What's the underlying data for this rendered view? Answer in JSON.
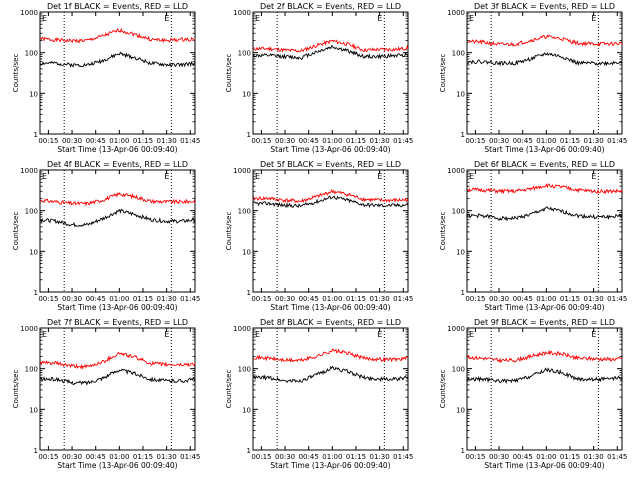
{
  "figure": {
    "common": {
      "ylabel": "Counts/sec",
      "xlabel": "Start Time (13-Apr-06 00:09:40)",
      "x_tick_labels": [
        "00:15",
        "00:30",
        "00:45",
        "01:00",
        "01:15",
        "01:30",
        "01:45"
      ],
      "y_tick_labels": [
        "1",
        "10",
        "100",
        "1000"
      ],
      "corner_markers": [
        "E",
        "E"
      ],
      "colors": {
        "events": "#000000",
        "lld": "#ff0000",
        "axes": "#000000",
        "background": "#ffffff"
      }
    }
  },
  "chart_data": [
    {
      "type": "line",
      "title": "Det 1f BLACK = Events, RED = LLD",
      "xlabel": "Start Time (13-Apr-06 00:09:40)",
      "ylabel": "Counts/sec",
      "yscale": "log",
      "ylim": [
        1,
        1000
      ],
      "xlim": [
        "00:09:40",
        "01:48:00"
      ],
      "x_ticks": [
        "00:15",
        "00:30",
        "00:45",
        "01:00",
        "01:15",
        "01:30",
        "01:45"
      ],
      "y_ticks": [
        1,
        10,
        100,
        1000
      ],
      "vlines": [
        "00:25",
        "01:33"
      ],
      "grid": false,
      "x": [
        "00:10",
        "00:20",
        "00:30",
        "00:40",
        "00:50",
        "01:00",
        "01:10",
        "01:20",
        "01:30",
        "01:40",
        "01:48"
      ],
      "series": [
        {
          "name": "LLD",
          "color": "#ff0000",
          "values": [
            220,
            205,
            195,
            200,
            260,
            360,
            280,
            210,
            200,
            210,
            215
          ]
        },
        {
          "name": "Events",
          "color": "#000000",
          "values": [
            55,
            55,
            50,
            50,
            65,
            95,
            75,
            55,
            50,
            50,
            55
          ]
        }
      ]
    },
    {
      "type": "line",
      "title": "Det 2f BLACK = Events, RED = LLD",
      "xlabel": "Start Time (13-Apr-06 00:09:40)",
      "ylabel": "Counts/sec",
      "yscale": "log",
      "ylim": [
        1,
        1000
      ],
      "xlim": [
        "00:09:40",
        "01:48:00"
      ],
      "x_ticks": [
        "00:15",
        "00:30",
        "00:45",
        "01:00",
        "01:15",
        "01:30",
        "01:45"
      ],
      "y_ticks": [
        1,
        10,
        100,
        1000
      ],
      "vlines": [
        "00:25",
        "01:33"
      ],
      "grid": false,
      "x": [
        "00:10",
        "00:20",
        "00:30",
        "00:40",
        "00:50",
        "01:00",
        "01:10",
        "01:20",
        "01:30",
        "01:40",
        "01:48"
      ],
      "series": [
        {
          "name": "LLD",
          "color": "#ff0000",
          "values": [
            125,
            125,
            115,
            110,
            150,
            195,
            160,
            115,
            120,
            120,
            130
          ]
        },
        {
          "name": "Events",
          "color": "#000000",
          "values": [
            85,
            85,
            80,
            75,
            105,
            140,
            110,
            80,
            80,
            85,
            90
          ]
        }
      ]
    },
    {
      "type": "line",
      "title": "Det 3f BLACK = Events, RED = LLD",
      "xlabel": "Start Time (13-Apr-06 00:09:40)",
      "ylabel": "Counts/sec",
      "yscale": "log",
      "ylim": [
        1,
        1000
      ],
      "xlim": [
        "00:09:40",
        "01:48:00"
      ],
      "x_ticks": [
        "00:15",
        "00:30",
        "00:45",
        "01:00",
        "01:15",
        "01:30",
        "01:45"
      ],
      "y_ticks": [
        1,
        10,
        100,
        1000
      ],
      "vlines": [
        "00:25",
        "01:33"
      ],
      "grid": false,
      "x": [
        "00:10",
        "00:20",
        "00:30",
        "00:40",
        "00:50",
        "01:00",
        "01:10",
        "01:20",
        "01:30",
        "01:40",
        "01:48"
      ],
      "series": [
        {
          "name": "LLD",
          "color": "#ff0000",
          "values": [
            190,
            180,
            160,
            160,
            200,
            250,
            220,
            170,
            165,
            165,
            170
          ]
        },
        {
          "name": "Events",
          "color": "#000000",
          "values": [
            60,
            60,
            55,
            55,
            70,
            95,
            80,
            55,
            55,
            55,
            60
          ]
        }
      ]
    },
    {
      "type": "line",
      "title": "Det 4f BLACK = Events, RED = LLD",
      "xlabel": "Start Time (13-Apr-06 00:09:40)",
      "ylabel": "Counts/sec",
      "yscale": "log",
      "ylim": [
        1,
        1000
      ],
      "xlim": [
        "00:09:40",
        "01:48:00"
      ],
      "x_ticks": [
        "00:15",
        "00:30",
        "00:45",
        "01:00",
        "01:15",
        "01:30",
        "01:45"
      ],
      "y_ticks": [
        1,
        10,
        100,
        1000
      ],
      "vlines": [
        "00:25",
        "01:33"
      ],
      "grid": false,
      "x": [
        "00:10",
        "00:20",
        "00:30",
        "00:40",
        "00:50",
        "01:00",
        "01:10",
        "01:20",
        "01:30",
        "01:40",
        "01:48"
      ],
      "series": [
        {
          "name": "LLD",
          "color": "#ff0000",
          "values": [
            180,
            165,
            150,
            150,
            185,
            260,
            220,
            170,
            165,
            165,
            170
          ]
        },
        {
          "name": "Events",
          "color": "#000000",
          "values": [
            60,
            55,
            45,
            45,
            65,
            100,
            80,
            60,
            55,
            55,
            60
          ]
        }
      ]
    },
    {
      "type": "line",
      "title": "Det 5f BLACK = Events, RED = LLD",
      "xlabel": "Start Time (13-Apr-06 00:09:40)",
      "ylabel": "Counts/sec",
      "yscale": "log",
      "ylim": [
        1,
        1000
      ],
      "xlim": [
        "00:09:40",
        "01:48:00"
      ],
      "x_ticks": [
        "00:15",
        "00:30",
        "00:45",
        "01:00",
        "01:15",
        "01:30",
        "01:45"
      ],
      "y_ticks": [
        1,
        10,
        100,
        1000
      ],
      "vlines": [
        "00:25",
        "01:33"
      ],
      "grid": false,
      "x": [
        "00:10",
        "00:20",
        "00:30",
        "00:40",
        "00:50",
        "01:00",
        "01:10",
        "01:20",
        "01:30",
        "01:40",
        "01:48"
      ],
      "series": [
        {
          "name": "LLD",
          "color": "#ff0000",
          "values": [
            200,
            200,
            180,
            170,
            220,
            300,
            250,
            190,
            180,
            180,
            185
          ]
        },
        {
          "name": "Events",
          "color": "#000000",
          "values": [
            150,
            150,
            135,
            130,
            165,
            220,
            180,
            140,
            135,
            135,
            140
          ]
        }
      ]
    },
    {
      "type": "line",
      "title": "Det 6f BLACK = Events, RED = LLD",
      "xlabel": "Start Time (13-Apr-06 00:09:40)",
      "ylabel": "Counts/sec",
      "yscale": "log",
      "ylim": [
        1,
        1000
      ],
      "xlim": [
        "00:09:40",
        "01:48:00"
      ],
      "x_ticks": [
        "00:15",
        "00:30",
        "00:45",
        "01:00",
        "01:15",
        "01:30",
        "01:45"
      ],
      "y_ticks": [
        1,
        10,
        100,
        1000
      ],
      "vlines": [
        "00:25",
        "01:33"
      ],
      "grid": false,
      "x": [
        "00:10",
        "00:20",
        "00:30",
        "00:40",
        "00:50",
        "01:00",
        "01:10",
        "01:20",
        "01:30",
        "01:40",
        "01:48"
      ],
      "series": [
        {
          "name": "LLD",
          "color": "#ff0000",
          "values": [
            330,
            320,
            300,
            300,
            340,
            420,
            380,
            320,
            300,
            300,
            300
          ]
        },
        {
          "name": "Events",
          "color": "#000000",
          "values": [
            75,
            75,
            65,
            65,
            80,
            115,
            95,
            75,
            70,
            70,
            75
          ]
        }
      ]
    },
    {
      "type": "line",
      "title": "Det 7f BLACK = Events, RED = LLD",
      "xlabel": "Start Time (13-Apr-06 00:09:40)",
      "ylabel": "Counts/sec",
      "yscale": "log",
      "ylim": [
        1,
        1000
      ],
      "xlim": [
        "00:09:40",
        "01:48:00"
      ],
      "x_ticks": [
        "00:15",
        "00:30",
        "00:45",
        "01:00",
        "01:15",
        "01:30",
        "01:45"
      ],
      "y_ticks": [
        1,
        10,
        100,
        1000
      ],
      "vlines": [
        "00:25",
        "01:33"
      ],
      "grid": false,
      "x": [
        "00:10",
        "00:20",
        "00:30",
        "00:40",
        "00:50",
        "01:00",
        "01:10",
        "01:20",
        "01:30",
        "01:40",
        "01:48"
      ],
      "series": [
        {
          "name": "LLD",
          "color": "#ff0000",
          "values": [
            140,
            135,
            115,
            110,
            150,
            240,
            190,
            135,
            125,
            125,
            130
          ]
        },
        {
          "name": "Events",
          "color": "#000000",
          "values": [
            55,
            55,
            45,
            45,
            60,
            95,
            75,
            55,
            50,
            50,
            55
          ]
        }
      ]
    },
    {
      "type": "line",
      "title": "Det 8f BLACK = Events, RED = LLD",
      "xlabel": "Start Time (13-Apr-06 00:09:40)",
      "ylabel": "Counts/sec",
      "yscale": "log",
      "ylim": [
        1,
        1000
      ],
      "xlim": [
        "00:09:40",
        "01:48:00"
      ],
      "x_ticks": [
        "00:15",
        "00:30",
        "00:45",
        "01:00",
        "01:15",
        "01:30",
        "01:45"
      ],
      "y_ticks": [
        1,
        10,
        100,
        1000
      ],
      "vlines": [
        "00:25",
        "01:33"
      ],
      "grid": false,
      "x": [
        "00:10",
        "00:20",
        "00:30",
        "00:40",
        "00:50",
        "01:00",
        "01:10",
        "01:20",
        "01:30",
        "01:40",
        "01:48"
      ],
      "series": [
        {
          "name": "LLD",
          "color": "#ff0000",
          "values": [
            190,
            180,
            160,
            160,
            200,
            280,
            240,
            180,
            170,
            170,
            180
          ]
        },
        {
          "name": "Events",
          "color": "#000000",
          "values": [
            60,
            60,
            50,
            50,
            70,
            105,
            85,
            60,
            55,
            55,
            60
          ]
        }
      ]
    },
    {
      "type": "line",
      "title": "Det 9f BLACK = Events, RED = LLD",
      "xlabel": "Start Time (13-Apr-06 00:09:40)",
      "ylabel": "Counts/sec",
      "yscale": "log",
      "ylim": [
        1,
        1000
      ],
      "xlim": [
        "00:09:40",
        "01:48:00"
      ],
      "x_ticks": [
        "00:15",
        "00:30",
        "00:45",
        "01:00",
        "01:15",
        "01:30",
        "01:45"
      ],
      "y_ticks": [
        1,
        10,
        100,
        1000
      ],
      "vlines": [
        "00:25",
        "01:33"
      ],
      "grid": false,
      "x": [
        "00:10",
        "00:20",
        "00:30",
        "00:40",
        "00:50",
        "01:00",
        "01:10",
        "01:20",
        "01:30",
        "01:40",
        "01:48"
      ],
      "series": [
        {
          "name": "LLD",
          "color": "#ff0000",
          "values": [
            190,
            180,
            160,
            160,
            200,
            250,
            230,
            180,
            175,
            170,
            175
          ]
        },
        {
          "name": "Events",
          "color": "#000000",
          "values": [
            55,
            55,
            50,
            50,
            65,
            95,
            80,
            55,
            55,
            55,
            60
          ]
        }
      ]
    }
  ]
}
